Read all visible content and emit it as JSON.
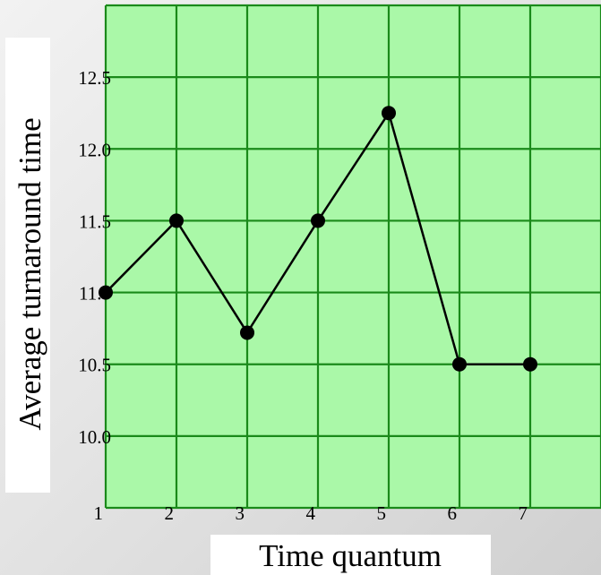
{
  "chart_data": {
    "type": "line",
    "title": "",
    "xlabel": "Time quantum",
    "ylabel": "Average turnaround time",
    "x": [
      1,
      2,
      3,
      4,
      5,
      6,
      7
    ],
    "series": [
      {
        "values": [
          11.0,
          11.5,
          10.72,
          11.5,
          12.25,
          10.5,
          10.5
        ]
      }
    ],
    "x_ticks": [
      "1",
      "2",
      "3",
      "4",
      "5",
      "6",
      "7"
    ],
    "y_ticks": [
      "10.0",
      "10.5",
      "11.0",
      "11.5",
      "12.0",
      "12.5"
    ],
    "xlim": [
      1,
      8
    ],
    "ylim": [
      9.5,
      13.0
    ],
    "grid": true,
    "legend": "none",
    "colors": {
      "plot_background": "#aaf8a8",
      "grid": "#1a8a1a",
      "line": "#000000",
      "marker": "#000000"
    }
  }
}
